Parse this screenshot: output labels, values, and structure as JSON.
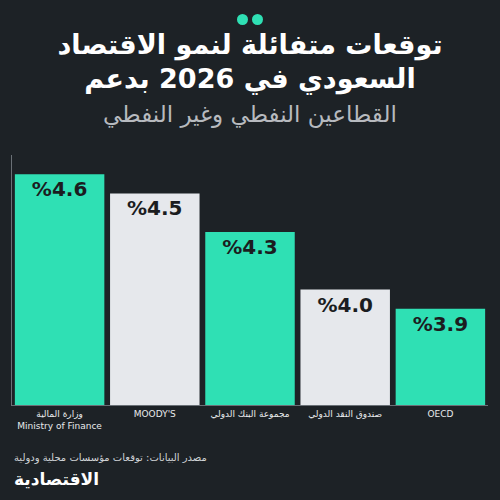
{
  "chart_data": {
    "type": "bar",
    "title": "توقعات متفائلة لنمو الاقتصاد السعودي في 2026 بدعم",
    "subtitle": "القطاعين النفطي وغير النفطي",
    "categories": [
      "وزارة المالية\nMinistry of Finance",
      "MOODY'S",
      "مجموعة البنك الدولي",
      "صندوق النقد الدولي",
      "OECD"
    ],
    "values": [
      4.6,
      4.5,
      4.3,
      4.0,
      3.9
    ],
    "value_labels": [
      "%4.6",
      "%4.5",
      "%4.3",
      "%4.0",
      "%3.9"
    ],
    "colors": [
      "#2fe0b4",
      "#e6e8ec",
      "#2fe0b4",
      "#e6e8ec",
      "#2fe0b4"
    ],
    "ylim": [
      3.4,
      4.7
    ],
    "yticks": [],
    "grid": false,
    "data_labels": true,
    "tick_labels": "x",
    "source": "مصدر البيانات: توقعات مؤسسات محلية ودولية",
    "brand": "الاقتصادية"
  }
}
